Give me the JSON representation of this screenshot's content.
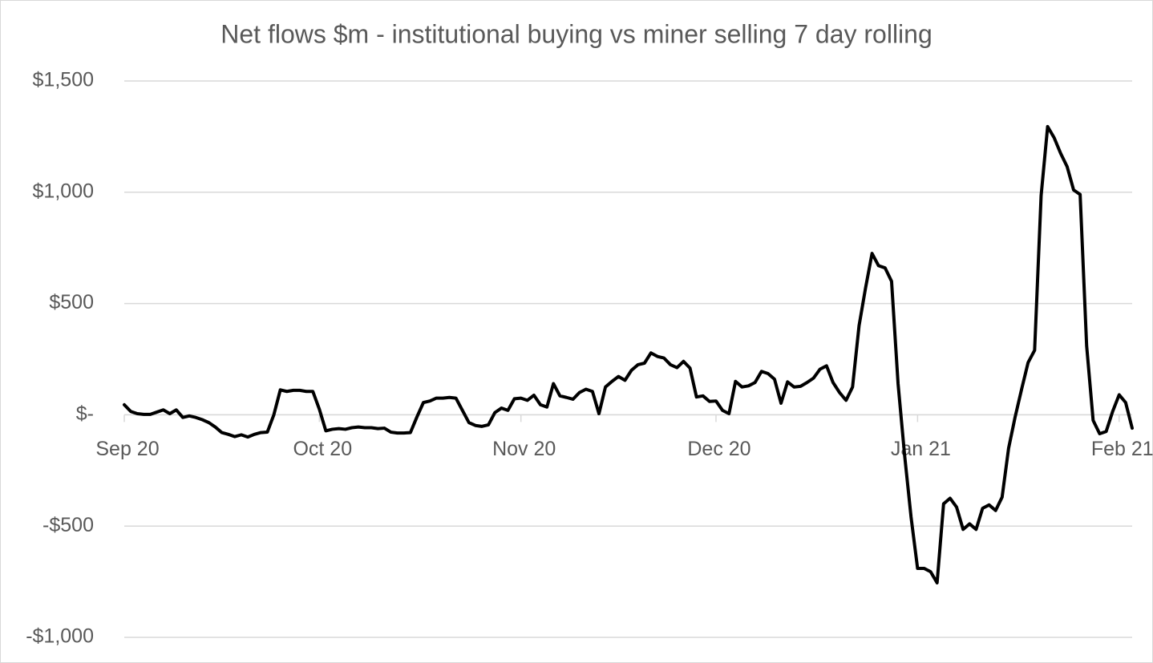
{
  "chart_data": {
    "type": "line",
    "title": "Net flows $m - institutional buying vs miner selling 7 day rolling",
    "color": "#000000",
    "grid": true,
    "xlim": [
      0,
      155
    ],
    "xticks": [
      {
        "value": 0,
        "label": "Sep 20"
      },
      {
        "value": 30,
        "label": "Oct 20"
      },
      {
        "value": 61,
        "label": "Nov 20"
      },
      {
        "value": 91,
        "label": "Dec 20"
      },
      {
        "value": 122,
        "label": "Jan 21"
      },
      {
        "value": 153,
        "label": "Feb 21"
      }
    ],
    "ylim": [
      -1000,
      1500
    ],
    "yticks": [
      {
        "value": -1000,
        "label": "-$1,000"
      },
      {
        "value": -500,
        "label": "-$500"
      },
      {
        "value": 0,
        "label": "$-"
      },
      {
        "value": 500,
        "label": "$500"
      },
      {
        "value": 1000,
        "label": "$1,000"
      },
      {
        "value": 1500,
        "label": "$1,500"
      }
    ],
    "x": [
      0,
      1,
      2,
      3,
      4,
      5,
      6,
      7,
      8,
      9,
      10,
      11,
      12,
      13,
      14,
      15,
      16,
      17,
      18,
      19,
      20,
      21,
      22,
      23,
      24,
      25,
      26,
      27,
      28,
      29,
      30,
      31,
      32,
      33,
      34,
      35,
      36,
      37,
      38,
      39,
      40,
      41,
      42,
      43,
      44,
      45,
      46,
      47,
      48,
      49,
      50,
      51,
      52,
      53,
      54,
      55,
      56,
      57,
      58,
      59,
      60,
      61,
      62,
      63,
      64,
      65,
      66,
      67,
      68,
      69,
      70,
      71,
      72,
      73,
      74,
      75,
      76,
      77,
      78,
      79,
      80,
      81,
      82,
      83,
      84,
      85,
      86,
      87,
      88,
      89,
      90,
      91,
      92,
      93,
      94,
      95,
      96,
      97,
      98,
      99,
      100,
      101,
      102,
      103,
      104,
      105,
      106,
      107,
      108,
      109,
      110,
      111,
      112,
      113,
      114,
      115,
      116,
      117,
      118,
      119,
      120,
      121,
      122,
      123,
      124,
      125,
      126,
      127,
      128,
      129,
      130,
      131,
      132,
      133,
      134,
      135,
      136,
      137,
      138,
      139,
      140,
      141,
      142,
      143,
      144,
      145,
      146,
      147,
      148,
      149,
      150,
      151,
      152,
      153,
      154,
      155
    ],
    "values": [
      45,
      15,
      5,
      2,
      2,
      12,
      22,
      5,
      22,
      -12,
      -5,
      -12,
      -22,
      -35,
      -55,
      -80,
      -88,
      -98,
      -90,
      -100,
      -88,
      -80,
      -78,
      0,
      112,
      105,
      110,
      110,
      105,
      105,
      25,
      -72,
      -65,
      -62,
      -65,
      -58,
      -55,
      -58,
      -58,
      -62,
      -60,
      -78,
      -82,
      -82,
      -80,
      -10,
      55,
      62,
      75,
      75,
      78,
      75,
      20,
      -35,
      -48,
      -52,
      -45,
      10,
      30,
      20,
      72,
      75,
      65,
      88,
      45,
      35,
      140,
      85,
      78,
      70,
      100,
      115,
      105,
      5,
      125,
      150,
      172,
      155,
      200,
      225,
      232,
      278,
      262,
      255,
      225,
      212,
      240,
      210,
      80,
      85,
      60,
      62,
      20,
      5,
      150,
      125,
      130,
      145,
      195,
      185,
      160,
      52,
      148,
      125,
      128,
      145,
      165,
      205,
      220,
      145,
      100,
      65,
      125,
      400,
      570,
      725,
      670,
      660,
      600,
      140,
      -180,
      -460,
      -690,
      -690,
      -705,
      -755,
      -400,
      -375,
      -415,
      -515,
      -490,
      -515,
      -420,
      -405,
      -430,
      -370,
      -150,
      -10,
      115,
      235,
      290,
      985,
      1295,
      1245,
      1175,
      1115,
      1010,
      990,
      310,
      -25,
      -85,
      -75,
      15,
      90,
      55,
      -60
    ]
  }
}
